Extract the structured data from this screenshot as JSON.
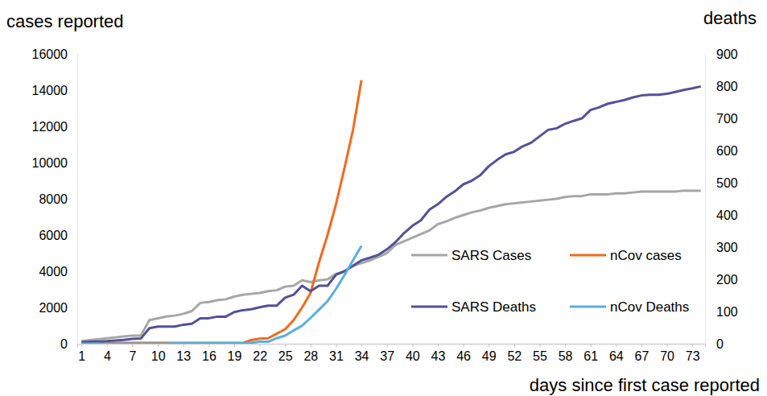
{
  "chart_data": {
    "type": "line",
    "y_label": "cases reported",
    "y2_label": "deaths",
    "x_label": "days since first case reported",
    "x": [
      1,
      2,
      3,
      4,
      5,
      6,
      7,
      8,
      9,
      10,
      11,
      12,
      13,
      14,
      15,
      16,
      17,
      18,
      19,
      20,
      21,
      22,
      23,
      24,
      25,
      26,
      27,
      28,
      29,
      30,
      31,
      32,
      33,
      34,
      35,
      36,
      37,
      38,
      39,
      40,
      41,
      42,
      43,
      44,
      45,
      46,
      47,
      48,
      49,
      50,
      51,
      52,
      53,
      54,
      55,
      56,
      57,
      58,
      59,
      60,
      61,
      62,
      63,
      64,
      65,
      66,
      67,
      68,
      69,
      70,
      71,
      72,
      73,
      74
    ],
    "xlim": [
      0.5,
      74.5
    ],
    "xticks": [
      1,
      4,
      7,
      10,
      13,
      16,
      19,
      22,
      25,
      28,
      31,
      34,
      37,
      40,
      43,
      46,
      49,
      52,
      55,
      58,
      61,
      64,
      67,
      70,
      73
    ],
    "ylim": [
      0,
      16000
    ],
    "yticks": [
      0,
      2000,
      4000,
      6000,
      8000,
      10000,
      12000,
      14000,
      16000
    ],
    "y2lim": [
      0,
      900
    ],
    "y2ticks": [
      0,
      100,
      200,
      300,
      400,
      500,
      600,
      700,
      800,
      900
    ],
    "grid": false,
    "legend": "right",
    "series": [
      {
        "name": "SARS Cases",
        "color": "#a6a6a6",
        "values": [
          150,
          200,
          250,
          300,
          350,
          400,
          450,
          450,
          1300,
          1400,
          1500,
          1550,
          1650,
          1800,
          2250,
          2300,
          2400,
          2450,
          2600,
          2700,
          2750,
          2800,
          2900,
          2950,
          3150,
          3200,
          3500,
          3400,
          3500,
          3550,
          3850,
          4000,
          4300,
          4450,
          4600,
          4800,
          5000,
          5450,
          5650,
          5850,
          6050,
          6250,
          6600,
          6750,
          6950,
          7100,
          7250,
          7350,
          7500,
          7600,
          7700,
          7750,
          7800,
          7850,
          7900,
          7950,
          8000,
          8100,
          8150,
          8150,
          8250,
          8250,
          8250,
          8300,
          8300,
          8350,
          8400,
          8400,
          8400,
          8400,
          8400,
          8450,
          8450,
          8450
        ]
      },
      {
        "name": "nCov cases",
        "color": "#f26a1b",
        "values": [
          41,
          41,
          41,
          41,
          41,
          41,
          41,
          41,
          41,
          41,
          41,
          41,
          41,
          41,
          41,
          41,
          41,
          41,
          41,
          41,
          200,
          280,
          300,
          550,
          800,
          1300,
          2000,
          2800,
          4500,
          6000,
          7700,
          9700,
          11800,
          14550,
          null,
          null,
          null,
          null,
          null,
          null,
          null,
          null,
          null,
          null,
          null,
          null,
          null,
          null,
          null,
          null,
          null,
          null,
          null,
          null,
          null,
          null,
          null,
          null,
          null,
          null,
          null,
          null,
          null,
          null,
          null,
          null,
          null,
          null,
          null,
          null,
          null,
          null,
          null,
          null
        ]
      },
      {
        "name": "SARS Deaths",
        "color": "#525199",
        "axis": "y2",
        "values": [
          5,
          6,
          7,
          8,
          10,
          12,
          15,
          16,
          48,
          53,
          53,
          53,
          59,
          62,
          79,
          79,
          84,
          84,
          98,
          104,
          107,
          113,
          118,
          118,
          143,
          152,
          180,
          163,
          180,
          180,
          214,
          225,
          242,
          259,
          267,
          276,
          293,
          315,
          343,
          366,
          383,
          416,
          433,
          456,
          473,
          495,
          506,
          523,
          551,
          571,
          588,
          596,
          613,
          624,
          644,
          664,
          669,
          683,
          692,
          700,
          726,
          734,
          745,
          751,
          757,
          765,
          771,
          773,
          773,
          776,
          782,
          788,
          793,
          799
        ]
      },
      {
        "name": "nCov Deaths",
        "color": "#5aaee0",
        "axis": "y2",
        "values": [
          0,
          0,
          0,
          0,
          0,
          0,
          0,
          0,
          0,
          0,
          0,
          1,
          1,
          1,
          1,
          1,
          1,
          1,
          1,
          1,
          3,
          6,
          6,
          17,
          25,
          41,
          56,
          80,
          106,
          132,
          170,
          213,
          259,
          304,
          null,
          null,
          null,
          null,
          null,
          null,
          null,
          null,
          null,
          null,
          null,
          null,
          null,
          null,
          null,
          null,
          null,
          null,
          null,
          null,
          null,
          null,
          null,
          null,
          null,
          null,
          null,
          null,
          null,
          null,
          null,
          null,
          null,
          null,
          null,
          null,
          null,
          null,
          null,
          null
        ]
      }
    ]
  }
}
